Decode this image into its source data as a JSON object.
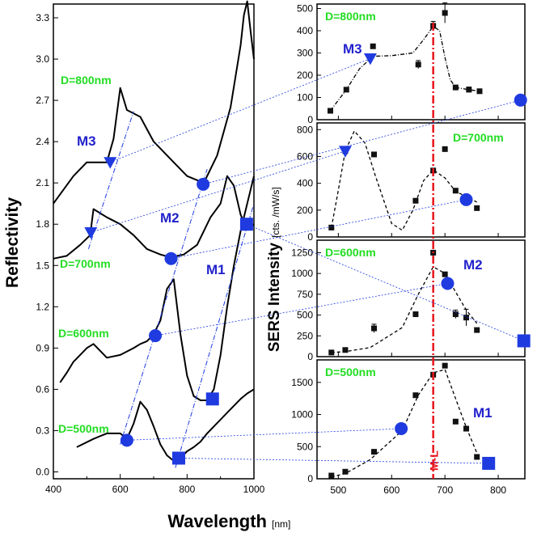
{
  "chart_data": {
    "type": "line",
    "shared_xlabel": "Wavelength",
    "shared_xunit": "[nm]",
    "colors": {
      "curve": "#000000",
      "marker_blue": "#1f3be0",
      "green_label": "#22dd22",
      "mode_label": "#2222cc",
      "ml_line": "#e8141b"
    },
    "left": {
      "ylabel": "Reflectivity",
      "xlim": [
        400,
        1000
      ],
      "ylim": [
        -0.05,
        3.4
      ],
      "xticks": [
        "400",
        "600",
        "800",
        "1000"
      ],
      "yticks": [
        "0.0",
        "0.3",
        "0.6",
        "0.9",
        "1.2",
        "1.5",
        "1.8",
        "2.1",
        "2.4",
        "2.7",
        "3.0",
        "3.3"
      ],
      "series": [
        {
          "name": "D=500nm",
          "x": [
            470,
            520,
            560,
            600,
            620,
            640,
            660,
            680,
            700,
            720,
            740,
            760,
            780,
            800,
            820,
            840,
            860,
            880,
            900,
            920,
            940,
            960,
            980,
            1000
          ],
          "y": [
            0.18,
            0.24,
            0.28,
            0.28,
            0.24,
            0.35,
            0.51,
            0.45,
            0.33,
            0.2,
            0.12,
            0.08,
            0.1,
            0.15,
            0.18,
            0.22,
            0.28,
            0.33,
            0.38,
            0.43,
            0.48,
            0.53,
            0.57,
            0.6
          ]
        },
        {
          "name": "D=600nm",
          "x": [
            420,
            440,
            460,
            480,
            500,
            520,
            560,
            600,
            640,
            660,
            680,
            700,
            720,
            740,
            760,
            780,
            800,
            820,
            840,
            860,
            880,
            900,
            920,
            940,
            960,
            980,
            1000
          ],
          "y": [
            0.65,
            0.72,
            0.8,
            0.85,
            0.9,
            0.93,
            0.83,
            0.85,
            0.9,
            0.93,
            0.95,
            1.0,
            1.1,
            1.33,
            1.4,
            1.0,
            0.7,
            0.55,
            0.52,
            0.52,
            0.6,
            0.85,
            1.2,
            1.5,
            1.75,
            1.95,
            2.15
          ]
        },
        {
          "name": "D=700nm",
          "x": [
            400,
            440,
            480,
            510,
            520,
            560,
            600,
            640,
            680,
            720,
            750,
            790,
            830,
            870,
            900,
            920,
            940,
            960,
            980,
            1000
          ],
          "y": [
            1.55,
            1.57,
            1.65,
            1.72,
            1.91,
            1.85,
            1.8,
            1.72,
            1.62,
            1.58,
            1.56,
            1.58,
            1.65,
            1.85,
            1.95,
            2.15,
            2.08,
            1.87,
            1.76,
            1.8
          ]
        },
        {
          "name": "D=800nm",
          "x": [
            400,
            430,
            460,
            500,
            530,
            560,
            580,
            600,
            620,
            660,
            700,
            760,
            800,
            850,
            890,
            930,
            960,
            970,
            980,
            990,
            1000
          ],
          "y": [
            1.95,
            2.05,
            2.15,
            2.25,
            2.25,
            2.25,
            2.42,
            2.79,
            2.63,
            2.58,
            2.4,
            2.25,
            2.15,
            2.1,
            2.3,
            2.65,
            3.1,
            3.32,
            3.42,
            3.2,
            3.0
          ]
        }
      ],
      "markers": [
        {
          "mode": "M3",
          "shape": "triangle",
          "points": [
            [
              570,
              2.25
            ],
            [
              512,
              1.74
            ]
          ]
        },
        {
          "mode": "M2",
          "shape": "circle",
          "points": [
            [
              848,
              2.09
            ],
            [
              752,
              1.55
            ],
            [
              705,
              0.99
            ],
            [
              620,
              0.23
            ]
          ]
        },
        {
          "mode": "M1",
          "shape": "square",
          "points": [
            [
              978,
              1.8
            ],
            [
              876,
              0.53
            ],
            [
              775,
              0.1
            ]
          ]
        }
      ],
      "labels": [
        "D=800nm",
        "D=700nm",
        "D=600nm",
        "D=500nm",
        "M3",
        "M2",
        "M1"
      ]
    },
    "right": {
      "ylabel": "SERS Intensity",
      "yunit": "[cts. /mW/s]",
      "xlim": [
        460,
        850
      ],
      "xticks": [
        "500",
        "600",
        "700",
        "800"
      ],
      "ml_label": "M-L",
      "ml_x": 678,
      "panels": [
        {
          "name": "D=800nm",
          "mode": "M3",
          "ylim": [
            0,
            520
          ],
          "yticks": [
            "0",
            "100",
            "200",
            "300",
            "400",
            "500"
          ],
          "x": [
            485,
            515,
            565,
            650,
            678,
            700,
            720,
            745,
            765
          ],
          "y": [
            40,
            135,
            330,
            248,
            422,
            480,
            145,
            135,
            128
          ],
          "err": [
            0,
            0,
            0,
            18,
            20,
            45,
            0,
            12,
            0
          ],
          "fit_x": [
            485,
            515,
            540,
            565,
            600,
            640,
            660,
            678,
            690,
            700,
            710,
            720,
            745,
            765
          ],
          "fit_y": [
            40,
            135,
            230,
            285,
            288,
            300,
            360,
            420,
            400,
            280,
            180,
            145,
            135,
            128
          ],
          "markers": [
            {
              "shape": "triangle",
              "x": 560,
              "y": 275
            },
            {
              "shape": "circle",
              "x": 842,
              "y": 88
            }
          ]
        },
        {
          "name": "D=700nm",
          "mode": "M2",
          "ylim": [
            0,
            850
          ],
          "yticks": [
            "0",
            "200",
            "400",
            "600",
            "800"
          ],
          "x": [
            487,
            513,
            567,
            645,
            678,
            700,
            720,
            740,
            760
          ],
          "y": [
            70,
            640,
            615,
            270,
            495,
            655,
            345,
            290,
            215
          ],
          "err": [
            0,
            0,
            0,
            0,
            0,
            0,
            0,
            0,
            0
          ],
          "fit_x": [
            487,
            500,
            513,
            530,
            550,
            570,
            600,
            620,
            640,
            660,
            678,
            700,
            720,
            740,
            760
          ],
          "fit_y": [
            70,
            350,
            640,
            790,
            700,
            450,
            100,
            50,
            200,
            420,
            500,
            440,
            340,
            300,
            260
          ],
          "markers": [
            {
              "shape": "triangle",
              "x": 513,
              "y": 640
            },
            {
              "shape": "circle",
              "x": 740,
              "y": 278
            }
          ]
        },
        {
          "name": "D=600nm",
          "mode": "M2",
          "ylim": [
            0,
            1400
          ],
          "yticks": [
            "0",
            "250",
            "500",
            "750",
            "1000",
            "1250"
          ],
          "x": [
            487,
            513,
            567,
            645,
            678,
            700,
            720,
            740,
            760
          ],
          "y": [
            50,
            80,
            340,
            510,
            1250,
            990,
            510,
            470,
            320
          ],
          "err": [
            0,
            0,
            50,
            0,
            0,
            0,
            50,
            100,
            0
          ],
          "fit_x": [
            487,
            513,
            560,
            620,
            650,
            678,
            700,
            720,
            740,
            760
          ],
          "fit_y": [
            50,
            60,
            110,
            350,
            750,
            1080,
            1000,
            780,
            560,
            400
          ],
          "markers": [
            {
              "shape": "circle",
              "x": 705,
              "y": 880
            },
            {
              "shape": "square",
              "x": 848,
              "y": 190
            }
          ]
        },
        {
          "name": "D=500nm",
          "mode": "M1",
          "ylim": [
            0,
            1850
          ],
          "yticks": [
            "0",
            "500",
            "1000",
            "1500"
          ],
          "x": [
            487,
            513,
            567,
            645,
            678,
            700,
            720,
            740,
            760
          ],
          "y": [
            50,
            110,
            420,
            1300,
            1620,
            1760,
            890,
            780,
            340
          ],
          "err": [
            0,
            0,
            0,
            0,
            0,
            0,
            0,
            0,
            0
          ],
          "fit_x": [
            487,
            513,
            560,
            620,
            650,
            678,
            700,
            720,
            740,
            760
          ],
          "fit_y": [
            30,
            80,
            300,
            750,
            1300,
            1650,
            1700,
            1250,
            800,
            400
          ],
          "markers": [
            {
              "shape": "circle",
              "x": 618,
              "y": 780
            },
            {
              "shape": "square",
              "x": 782,
              "y": 240
            }
          ]
        }
      ]
    }
  }
}
